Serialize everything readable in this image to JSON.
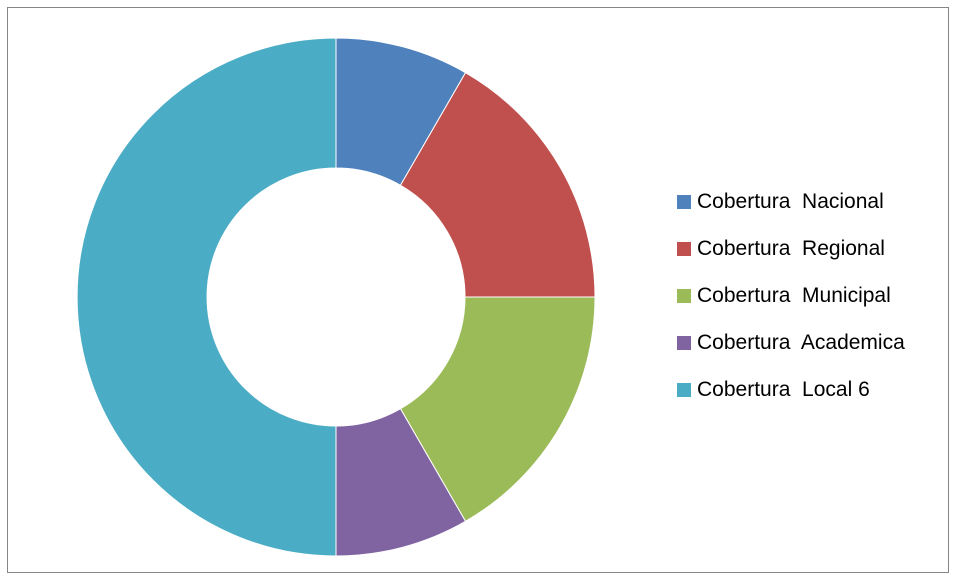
{
  "chart_data": {
    "type": "pie",
    "style": "doughnut",
    "title": "",
    "categories": [
      "Cobertura  Nacional",
      "Cobertura  Regional",
      "Cobertura  Municipal",
      "Cobertura  Academica",
      "Cobertura  Local 6"
    ],
    "values": [
      1,
      2,
      2,
      1,
      6
    ],
    "colors": [
      "#4f81bd",
      "#c0504d",
      "#9bbb59",
      "#8064a2",
      "#4bacc6"
    ],
    "legend": "right"
  }
}
